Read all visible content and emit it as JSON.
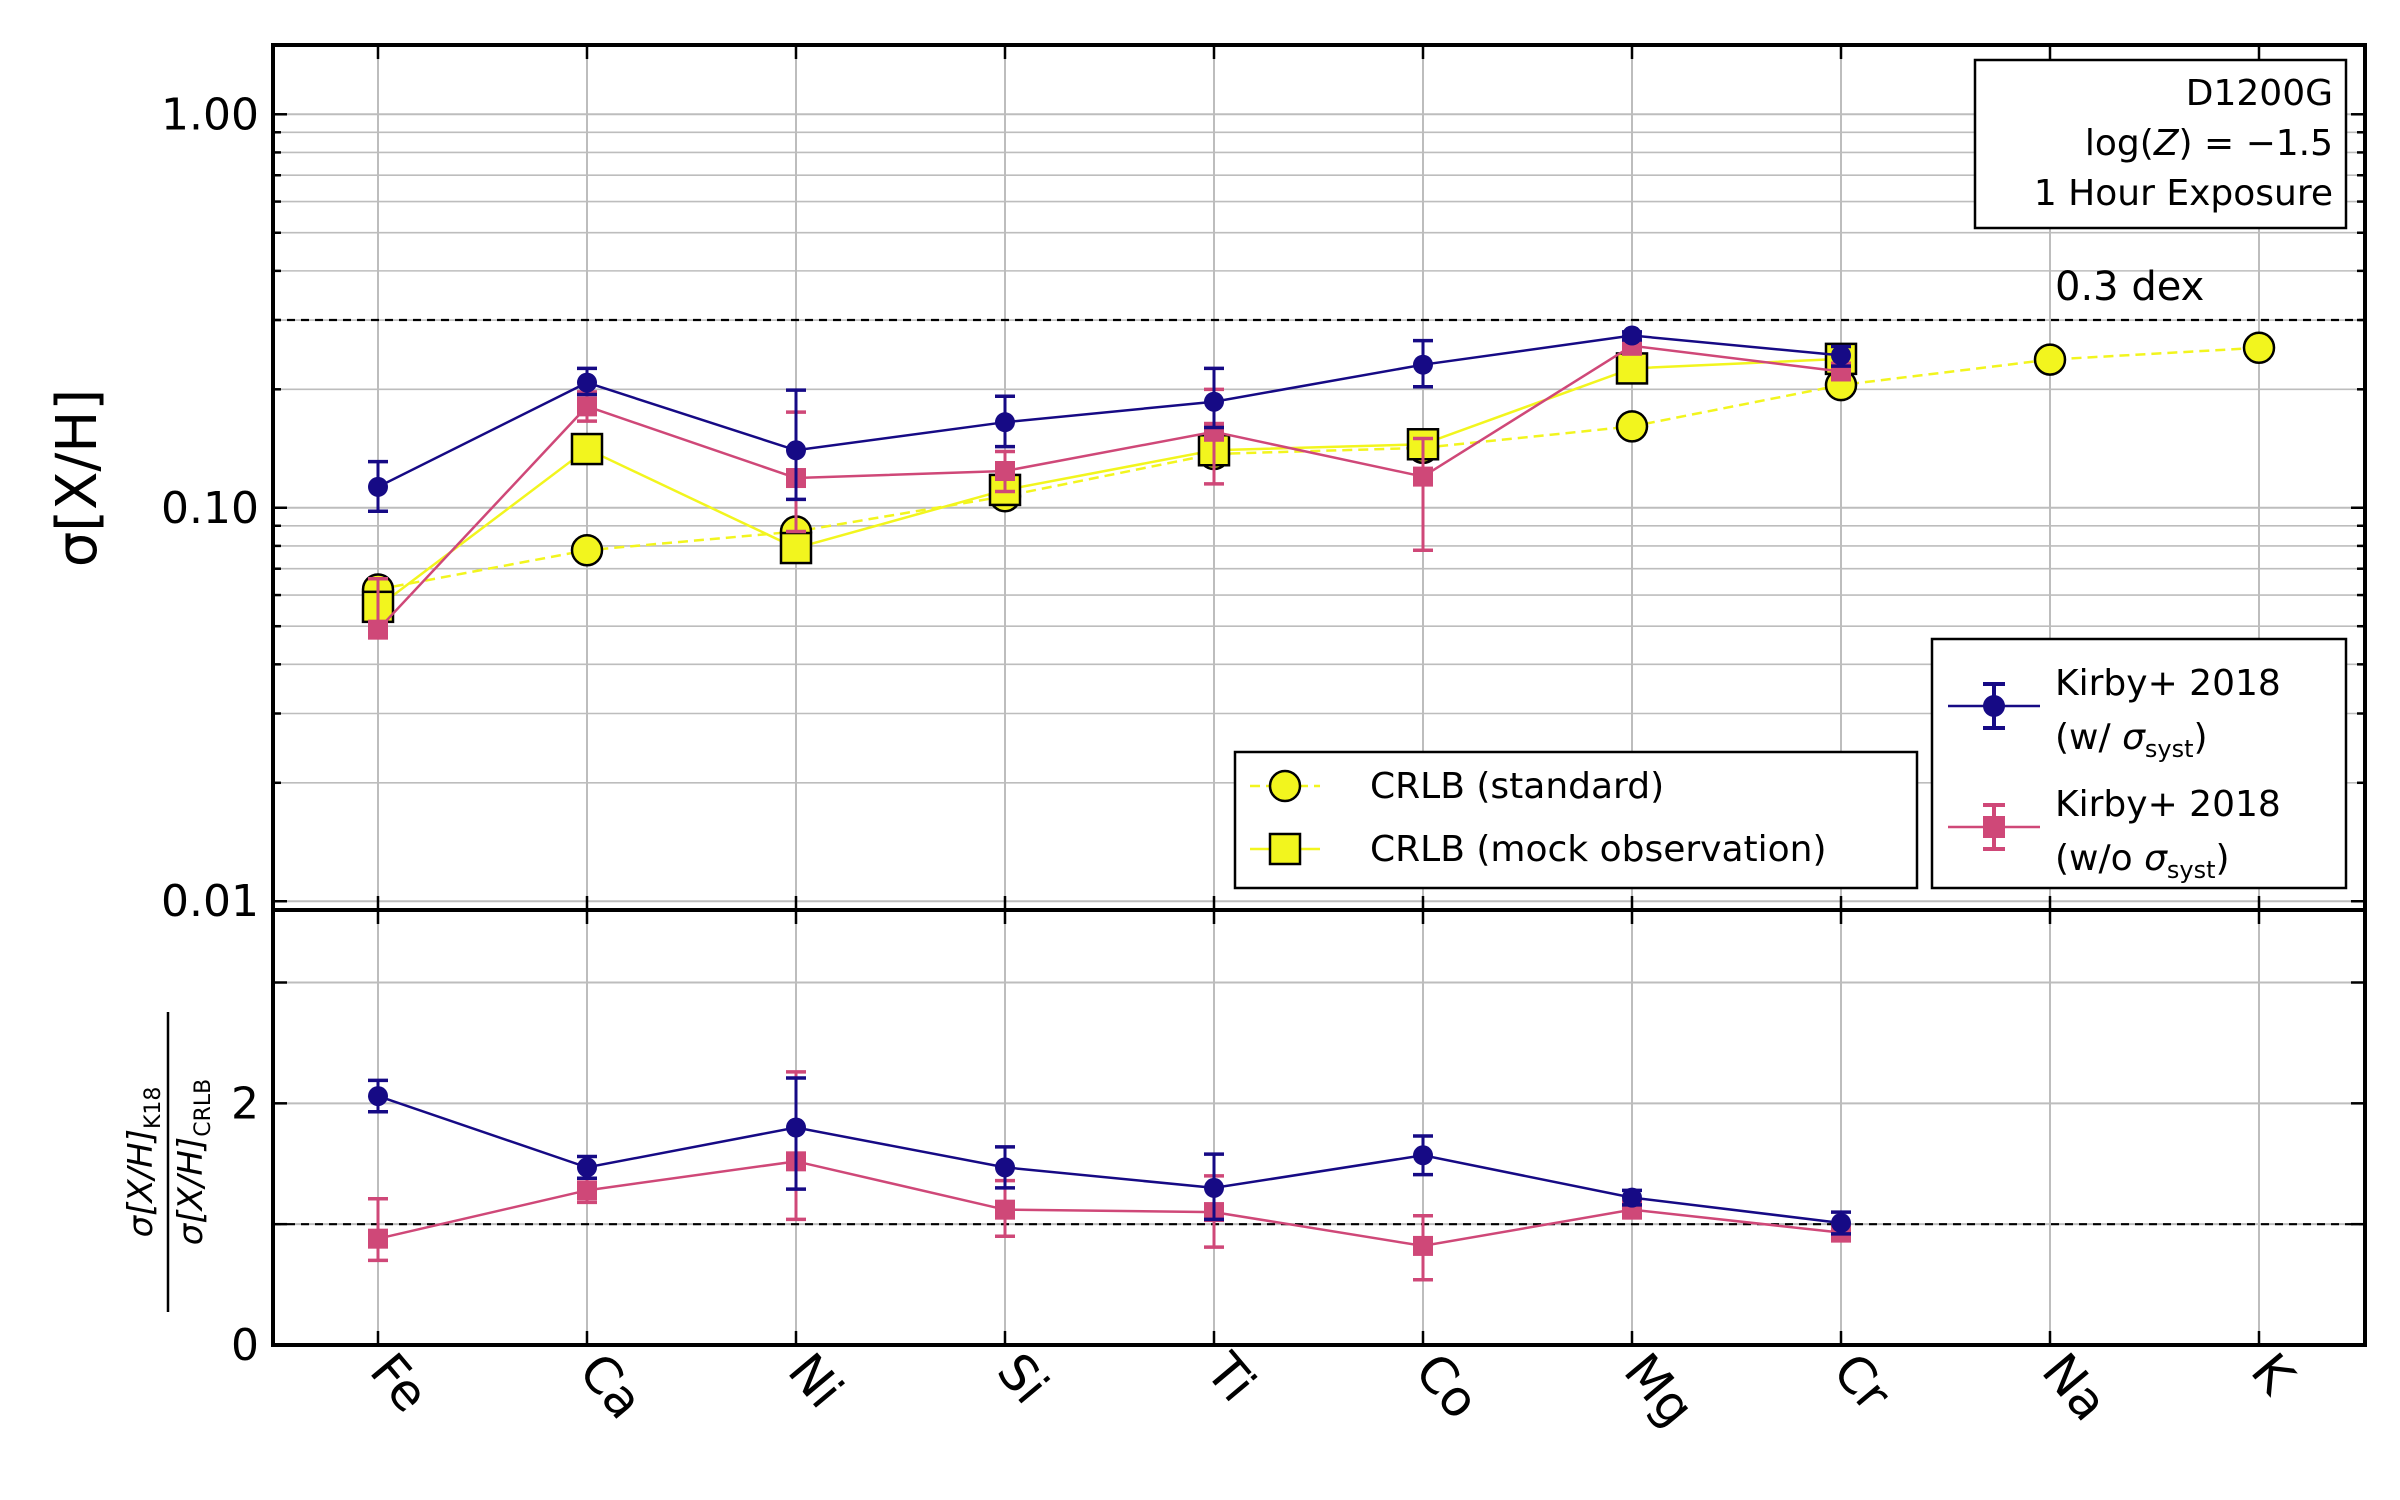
{
  "chart_data": [
    {
      "type": "line",
      "yscale": "log",
      "ylabel": "σ[X/H]",
      "ylim": [
        0.0095,
        1.5
      ],
      "yticks": [
        {
          "value": 0.01,
          "label": "0.01"
        },
        {
          "value": 0.1,
          "label": "0.10"
        },
        {
          "value": 1.0,
          "label": "1.00"
        }
      ],
      "grid": true,
      "categories": [
        "Fe",
        "Ca",
        "Ni",
        "Si",
        "Ti",
        "Co",
        "Mg",
        "Cr",
        "Na",
        "K"
      ],
      "annotation_box": {
        "line1": "D1200G",
        "line2_prefix": "log(",
        "line2_var": "Z",
        "line2_suffix": ") = −1.5",
        "line3": "1 Hour Exposure"
      },
      "reference_line": {
        "value": 0.3,
        "label": "0.3 dex"
      },
      "legend_left": {
        "placement": "lower-center",
        "entries": [
          {
            "label": "CRLB (standard)"
          },
          {
            "label": "CRLB (mock observation)"
          }
        ]
      },
      "legend_right": {
        "placement": "lower-right",
        "entries": [
          {
            "line1": "Kirby+ 2018",
            "line2_prefix": "(w/ ",
            "line2_sym": "σ",
            "line2_sub": "syst",
            "line2_suffix": ")"
          },
          {
            "line1": "Kirby+ 2018",
            "line2_prefix": "(w/o ",
            "line2_sym": "σ",
            "line2_sub": "syst",
            "line2_suffix": ")"
          }
        ]
      },
      "series": [
        {
          "key": "crlb_standard",
          "color": "#f2f51e",
          "marker": "circle",
          "linestyle": "dashed",
          "values": [
            0.062,
            0.078,
            0.087,
            0.107,
            0.137,
            0.142,
            0.161,
            0.205,
            0.238,
            0.255
          ]
        },
        {
          "key": "crlb_mock",
          "color": "#f2f51e",
          "marker": "square",
          "linestyle": "solid",
          "values": [
            0.056,
            0.141,
            0.079,
            0.111,
            0.14,
            0.145,
            0.226,
            0.239,
            null,
            null
          ]
        },
        {
          "key": "kirby_with_syst",
          "color": "#160a85",
          "marker": "circle",
          "linestyle": "solid",
          "values": [
            0.113,
            0.208,
            0.14,
            0.165,
            0.186,
            0.231,
            0.274,
            0.244,
            null,
            null
          ],
          "err_low": [
            0.098,
            0.194,
            0.105,
            0.143,
            0.16,
            0.203,
            0.267,
            0.229,
            null,
            null
          ],
          "err_high": [
            0.131,
            0.226,
            0.199,
            0.192,
            0.226,
            0.266,
            0.28,
            0.257,
            null,
            null
          ]
        },
        {
          "key": "kirby_without_syst",
          "color": "#cf4878",
          "marker": "square",
          "linestyle": "solid",
          "values": [
            0.049,
            0.181,
            0.119,
            0.124,
            0.156,
            0.12,
            0.258,
            0.222,
            null,
            null
          ],
          "err_low": [
            0.047,
            0.166,
            0.087,
            0.11,
            0.115,
            0.078,
            0.248,
            0.212,
            null,
            null
          ],
          "err_high": [
            0.066,
            0.197,
            0.175,
            0.139,
            0.2,
            0.15,
            0.271,
            0.233,
            null,
            null
          ]
        }
      ]
    },
    {
      "type": "line",
      "ylim": [
        0,
        3.6
      ],
      "yticks": [
        {
          "value": 0,
          "label": "0"
        },
        {
          "value": 2,
          "label": "2"
        }
      ],
      "ylabel": {
        "num": "σ[X/H]",
        "num_sub": "K18",
        "den": "σ[X/H]",
        "den_sub": "CRLB"
      },
      "grid": true,
      "reference_line": {
        "value": 1.0
      },
      "categories": [
        "Fe",
        "Ca",
        "Ni",
        "Si",
        "Ti",
        "Co",
        "Mg",
        "Cr",
        "Na",
        "K"
      ],
      "series": [
        {
          "key": "ratio_with_syst",
          "color": "#160a85",
          "marker": "circle",
          "values": [
            2.06,
            1.47,
            1.8,
            1.47,
            1.3,
            1.57,
            1.22,
            1.01,
            null,
            null
          ],
          "err_low": [
            1.93,
            1.38,
            1.29,
            1.3,
            1.04,
            1.41,
            1.16,
            0.92,
            null,
            null
          ],
          "err_high": [
            2.19,
            1.56,
            2.21,
            1.64,
            1.58,
            1.73,
            1.28,
            1.1,
            null,
            null
          ]
        },
        {
          "key": "ratio_without_syst",
          "color": "#cf4878",
          "marker": "square",
          "values": [
            0.88,
            1.28,
            1.52,
            1.12,
            1.1,
            0.82,
            1.12,
            0.93,
            null,
            null
          ],
          "err_low": [
            0.7,
            1.18,
            1.04,
            0.9,
            0.81,
            0.54,
            1.06,
            0.87,
            null,
            null
          ],
          "err_high": [
            1.21,
            1.38,
            2.26,
            1.36,
            1.4,
            1.07,
            1.18,
            0.99,
            null,
            null
          ]
        }
      ]
    }
  ]
}
